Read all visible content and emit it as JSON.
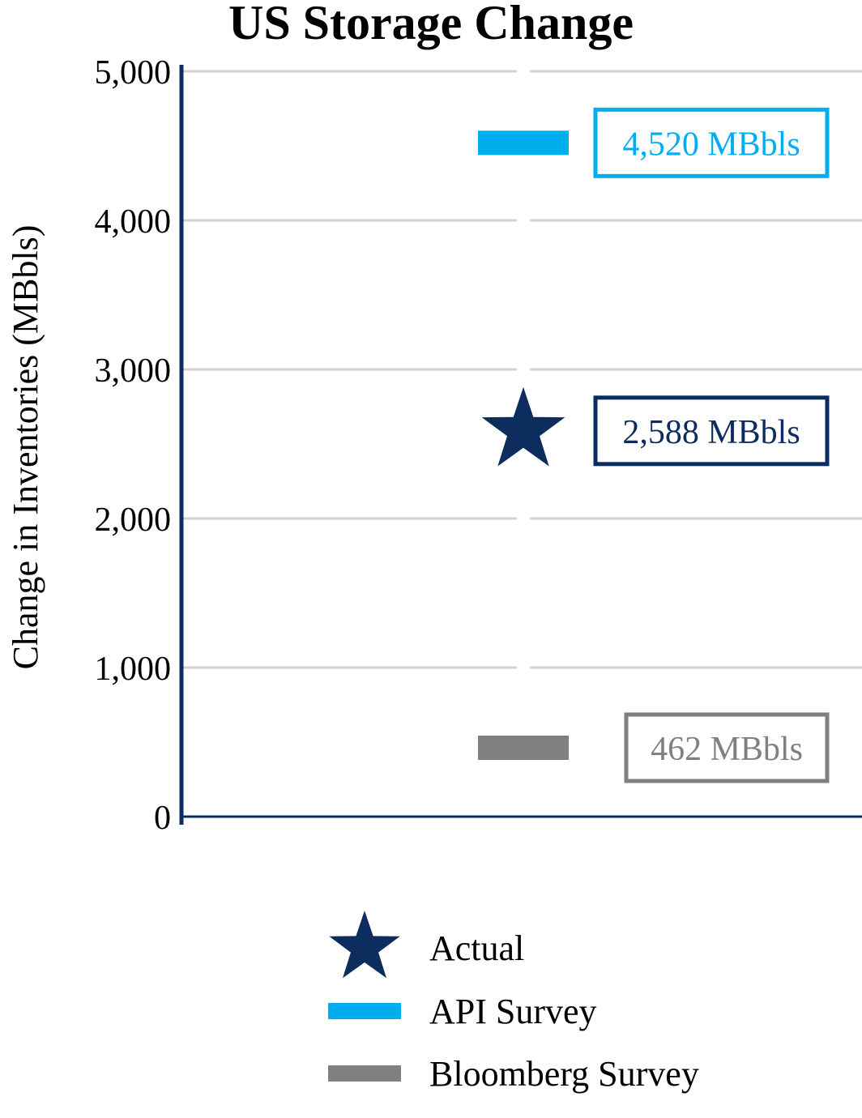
{
  "chart_data": {
    "type": "scatter",
    "title": "US Storage Change",
    "ylabel": "Change in Inventories (MBbls)",
    "ylim": [
      0,
      5000
    ],
    "yticks": [
      0,
      1000,
      2000,
      3000,
      4000,
      5000
    ],
    "ytick_labels": [
      "0",
      "1,000",
      "2,000",
      "3,000",
      "4,000",
      "5,000"
    ],
    "grid": true,
    "legend_position": "bottom",
    "series": [
      {
        "name": "Actual",
        "marker": "star",
        "value": 2588,
        "label": "2,588 MBbls",
        "color": "#0d2d5e"
      },
      {
        "name": "API Survey",
        "marker": "bar",
        "value": 4520,
        "label": "4,520 MBbls",
        "color": "#00aeef"
      },
      {
        "name": "Bloomberg Survey",
        "marker": "bar",
        "value": 462,
        "label": "462 MBbls",
        "color": "#808080"
      }
    ]
  }
}
